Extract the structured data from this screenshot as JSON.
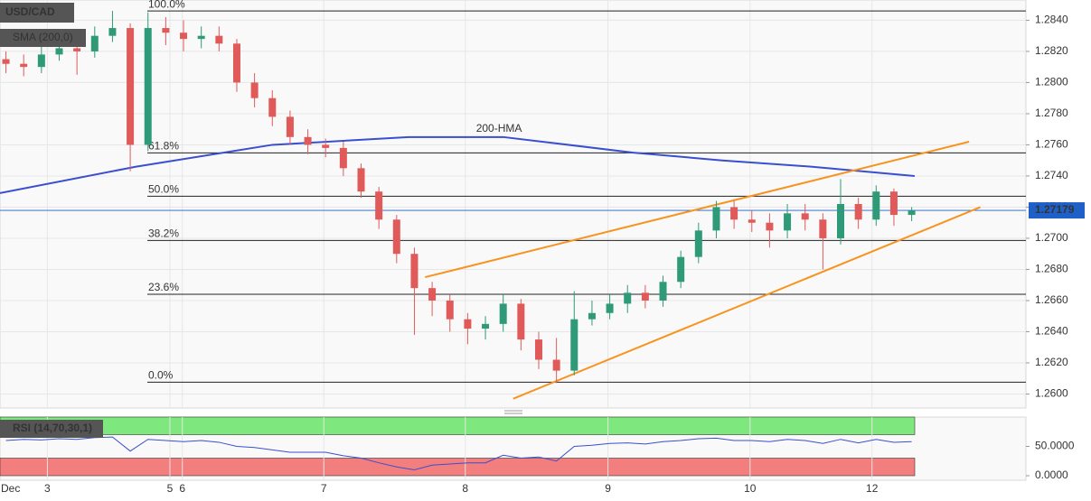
{
  "chart_data": {
    "type": "candlestick",
    "symbol": "USD/CAD",
    "indicator_label": "SMA (200,0)",
    "x": [
      1,
      4,
      7,
      10,
      13,
      16,
      19,
      22,
      25,
      28,
      31,
      34,
      37,
      40,
      43,
      46,
      49,
      52,
      55,
      58,
      61,
      64,
      67,
      70,
      73,
      76,
      79,
      82,
      85,
      88,
      91,
      94,
      97,
      100,
      103,
      106,
      109,
      112,
      115,
      118,
      121,
      124,
      127,
      130,
      133,
      136,
      139,
      142,
      145,
      148,
      151,
      154
    ],
    "open": [
      1.2815,
      1.2812,
      1.281,
      1.2818,
      1.2822,
      1.282,
      1.283,
      1.2835,
      1.276,
      1.2835,
      1.2832,
      1.2828,
      1.283,
      1.2825,
      1.28,
      1.279,
      1.2778,
      1.2765,
      1.276,
      1.2758,
      1.2745,
      1.273,
      1.2712,
      1.269,
      1.2668,
      1.266,
      1.2648,
      1.2642,
      1.2645,
      1.2658,
      1.2635,
      1.2622,
      1.2615,
      1.2648,
      1.2652,
      1.2658,
      1.2665,
      1.266,
      1.2672,
      1.2688,
      1.2705,
      1.272,
      1.2712,
      1.271,
      1.2705,
      1.2716,
      1.2712,
      1.27,
      1.2722,
      1.2712,
      1.273,
      1.2715
    ],
    "high": [
      1.282,
      1.2818,
      1.2824,
      1.2828,
      1.2826,
      1.2836,
      1.2846,
      1.2838,
      1.2845,
      1.2842,
      1.284,
      1.2836,
      1.2836,
      1.2828,
      1.2806,
      1.2795,
      1.2782,
      1.277,
      1.2764,
      1.2762,
      1.2748,
      1.2733,
      1.2715,
      1.2694,
      1.2672,
      1.2664,
      1.2652,
      1.265,
      1.2664,
      1.2661,
      1.264,
      1.2636,
      1.2666,
      1.266,
      1.2664,
      1.267,
      1.267,
      1.2676,
      1.2692,
      1.271,
      1.2724,
      1.2724,
      1.2718,
      1.2716,
      1.2722,
      1.2722,
      1.2716,
      1.2738,
      1.2726,
      1.2734,
      1.2732,
      1.272
    ],
    "low": [
      1.2806,
      1.2804,
      1.2806,
      1.2814,
      1.2805,
      1.2816,
      1.2826,
      1.2743,
      1.2756,
      1.2824,
      1.282,
      1.2822,
      1.282,
      1.2794,
      1.2784,
      1.2772,
      1.276,
      1.2754,
      1.2752,
      1.274,
      1.2726,
      1.2706,
      1.2684,
      1.2638,
      1.265,
      1.264,
      1.2632,
      1.2635,
      1.264,
      1.2628,
      1.2616,
      1.2607,
      1.2612,
      1.2644,
      1.2648,
      1.2652,
      1.2655,
      1.2656,
      1.2668,
      1.2684,
      1.27,
      1.2706,
      1.2704,
      1.2694,
      1.27,
      1.2705,
      1.268,
      1.2696,
      1.2706,
      1.2708,
      1.2708,
      1.2711
    ],
    "close": [
      1.2812,
      1.281,
      1.2818,
      1.2822,
      1.282,
      1.283,
      1.2835,
      1.276,
      1.2835,
      1.2832,
      1.2828,
      1.283,
      1.2825,
      1.28,
      1.279,
      1.2778,
      1.2765,
      1.276,
      1.2758,
      1.2745,
      1.273,
      1.2712,
      1.269,
      1.2668,
      1.266,
      1.2648,
      1.2642,
      1.2645,
      1.2658,
      1.2635,
      1.2622,
      1.2615,
      1.2648,
      1.2652,
      1.2658,
      1.2665,
      1.266,
      1.2672,
      1.2688,
      1.2705,
      1.272,
      1.2712,
      1.271,
      1.2705,
      1.2716,
      1.2712,
      1.27,
      1.2722,
      1.2712,
      1.273,
      1.2715,
      1.27179
    ],
    "up_color": "#2e9a78",
    "down_color": "#e05a5a",
    "xlim": [
      0,
      173.3
    ],
    "xticks": [
      {
        "value": 0.4,
        "label": "Dec"
      },
      {
        "value": 8,
        "label": "3"
      },
      {
        "value": 28.7,
        "label": "5"
      },
      {
        "value": 30.8,
        "label": "6"
      },
      {
        "value": 54.7,
        "label": "7"
      },
      {
        "value": 78.6,
        "label": "8"
      },
      {
        "value": 102.7,
        "label": "9"
      },
      {
        "value": 126.7,
        "label": "10"
      },
      {
        "value": 147.3,
        "label": "12"
      }
    ],
    "ylim": [
      1.2591,
      1.2853
    ],
    "yticks": [
      {
        "value": 1.26,
        "label": "1.2600"
      },
      {
        "value": 1.262,
        "label": "1.2620"
      },
      {
        "value": 1.264,
        "label": "1.2640"
      },
      {
        "value": 1.266,
        "label": "1.2660"
      },
      {
        "value": 1.268,
        "label": "1.2680"
      },
      {
        "value": 1.27,
        "label": "1.2700"
      },
      {
        "value": 1.272,
        "label": "1.2720"
      },
      {
        "value": 1.274,
        "label": "1.2740"
      },
      {
        "value": 1.276,
        "label": "1.2760"
      },
      {
        "value": 1.278,
        "label": "1.2780"
      },
      {
        "value": 1.28,
        "label": "1.2800"
      },
      {
        "value": 1.282,
        "label": "1.2820"
      },
      {
        "value": 1.284,
        "label": "1.2840"
      }
    ],
    "grid": true,
    "hma": {
      "name": "200-HMA",
      "color": "#3a4fd0",
      "x": [
        0,
        23,
        46,
        69,
        85,
        107,
        122,
        137,
        154.5
      ],
      "values": [
        1.2729,
        1.2746,
        1.276,
        1.2765,
        1.2765,
        1.2755,
        1.275,
        1.2746,
        1.274
      ]
    },
    "fib": [
      {
        "label": "100.0%",
        "value": 1.2846
      },
      {
        "label": "61.8%",
        "value": 1.27548
      },
      {
        "label": "50.0%",
        "value": 1.2727
      },
      {
        "label": "38.2%",
        "value": 1.26986
      },
      {
        "label": "23.6%",
        "value": 1.2664
      },
      {
        "label": "0.0%",
        "value": 1.26076
      }
    ],
    "trendlines": {
      "color": "#f7931e",
      "lines": [
        {
          "x": [
            71.8,
            163.7
          ],
          "values": [
            1.2675,
            1.2762
          ]
        },
        {
          "x": [
            86.7,
            165.6
          ],
          "values": [
            1.2597,
            1.272
          ]
        }
      ]
    },
    "last_price": 1.27179,
    "last_price_color": "#1e5fc8",
    "rsi": {
      "title": "RSI (14,70,30,1)",
      "color": "#3a4fd0",
      "upper": 70,
      "lower": 30,
      "upper_color": "#7ee87e",
      "lower_color": "#f27e7e",
      "values": [
        60,
        62,
        61,
        63,
        62,
        65,
        66,
        42,
        62,
        60,
        58,
        60,
        57,
        50,
        48,
        44,
        40,
        40,
        40,
        34,
        30,
        22,
        15,
        10,
        18,
        20,
        22,
        22,
        35,
        30,
        32,
        25,
        50,
        52,
        55,
        56,
        54,
        58,
        60,
        63,
        64,
        60,
        60,
        58,
        62,
        60,
        55,
        62,
        56,
        62,
        57,
        58
      ],
      "ylim": [
        0,
        100
      ],
      "yticks": [
        {
          "value": 50,
          "label": "50.0000"
        },
        {
          "value": 0,
          "label": "0.0000"
        }
      ]
    }
  }
}
